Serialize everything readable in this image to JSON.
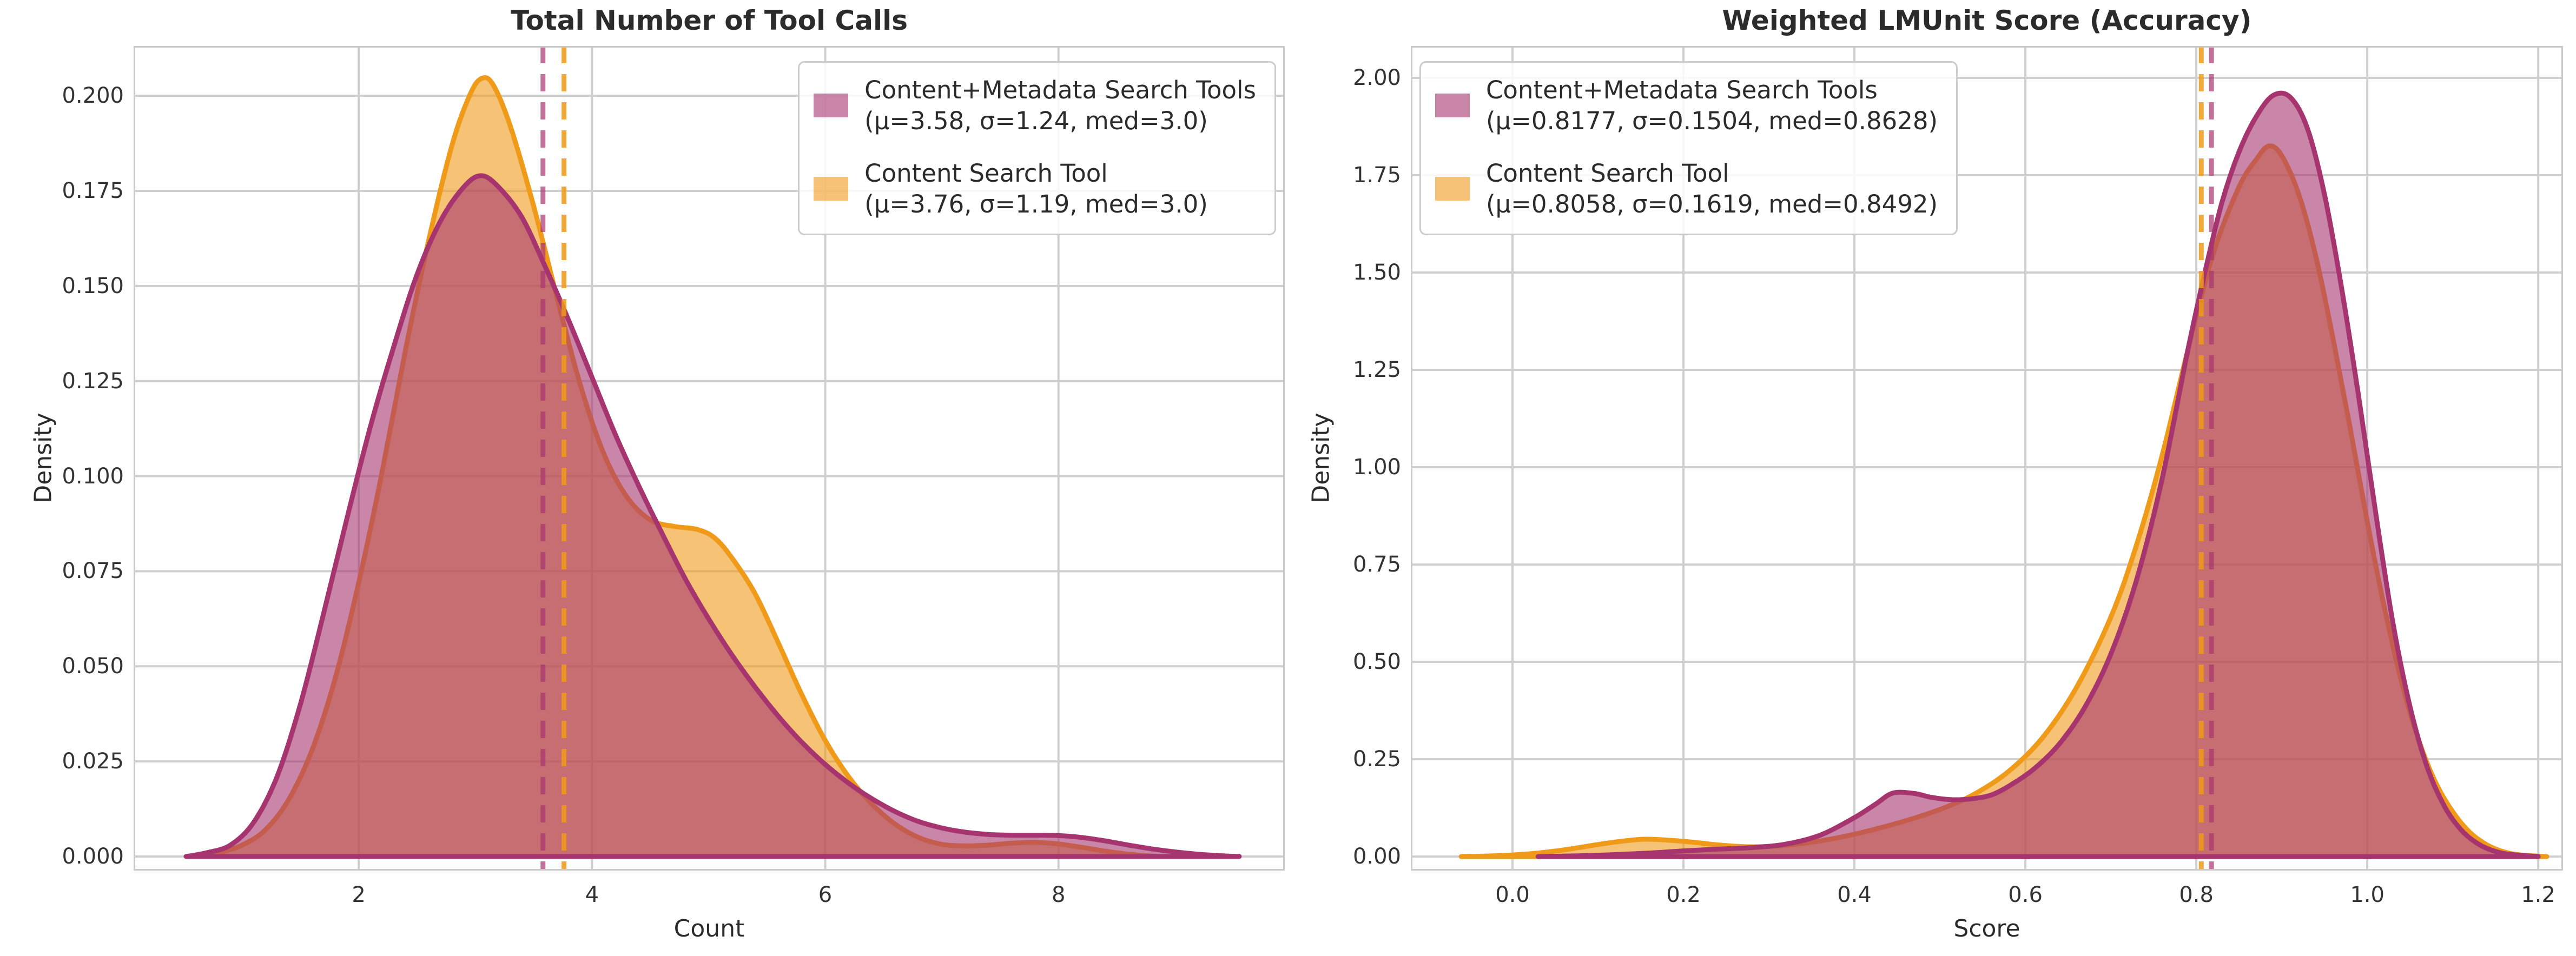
{
  "figure": {
    "background": "#ffffff",
    "text_color": "#2b2b2b",
    "tick_color": "#333333",
    "grid_color": "#cfcfcf",
    "spine_color": "#c9c9c9"
  },
  "chart_data": [
    {
      "type": "area",
      "subtype": "kde",
      "title": "Total Number of Tool Calls",
      "xlabel": "Count",
      "ylabel": "Density",
      "xlim": [
        0.07,
        9.94
      ],
      "ylim": [
        -0.0037,
        0.2131
      ],
      "grid": true,
      "xticks": {
        "values": [
          2,
          4,
          6,
          8
        ],
        "labels": [
          "2",
          "4",
          "6",
          "8"
        ]
      },
      "yticks": {
        "values": [
          0.0,
          0.025,
          0.05,
          0.075,
          0.1,
          0.125,
          0.15,
          0.175,
          0.2
        ],
        "labels": [
          "0.000",
          "0.025",
          "0.050",
          "0.075",
          "0.100",
          "0.125",
          "0.150",
          "0.175",
          "0.200"
        ]
      },
      "legend_position": "top-right",
      "legend_entries": [
        {
          "lines": [
            "Content+Metadata Search Tools",
            "(μ=3.58, σ=1.24, med=3.0)"
          ],
          "swatch_color": "rgba(166,53,111,0.6)"
        },
        {
          "lines": [
            "Content Search Tool",
            "(μ=3.76, σ=1.19, med=3.0)"
          ],
          "swatch_color": "rgba(240,154,25,0.6)"
        }
      ],
      "series": [
        {
          "key": "content-search-tool",
          "name": "Content Search Tool",
          "stats": {
            "mean": 3.76,
            "sigma": 1.19,
            "median": 3.0
          },
          "line_color": "#F09A19",
          "fill_color": "rgba(240,154,25,0.6)",
          "mean_line": 3.76,
          "mean_dash_color": "rgba(240,154,25,0.85)",
          "points": [
            [
              0.6,
              0
            ],
            [
              0.8,
              0.001
            ],
            [
              1.0,
              0.003
            ],
            [
              1.2,
              0.007
            ],
            [
              1.4,
              0.015
            ],
            [
              1.6,
              0.028
            ],
            [
              1.8,
              0.047
            ],
            [
              2.0,
              0.072
            ],
            [
              2.2,
              0.101
            ],
            [
              2.4,
              0.133
            ],
            [
              2.6,
              0.162
            ],
            [
              2.8,
              0.187
            ],
            [
              2.95,
              0.2
            ],
            [
              3.05,
              0.2045
            ],
            [
              3.15,
              0.203
            ],
            [
              3.3,
              0.192
            ],
            [
              3.5,
              0.171
            ],
            [
              3.7,
              0.147
            ],
            [
              3.9,
              0.124
            ],
            [
              4.1,
              0.106
            ],
            [
              4.3,
              0.0945
            ],
            [
              4.5,
              0.0885
            ],
            [
              4.7,
              0.0868
            ],
            [
              4.9,
              0.086
            ],
            [
              5.05,
              0.0838
            ],
            [
              5.2,
              0.0785
            ],
            [
              5.4,
              0.069
            ],
            [
              5.6,
              0.056
            ],
            [
              5.8,
              0.0425
            ],
            [
              6.0,
              0.0305
            ],
            [
              6.2,
              0.021
            ],
            [
              6.4,
              0.0138
            ],
            [
              6.6,
              0.0085
            ],
            [
              6.8,
              0.005
            ],
            [
              7.0,
              0.0032
            ],
            [
              7.2,
              0.0028
            ],
            [
              7.4,
              0.003
            ],
            [
              7.6,
              0.0035
            ],
            [
              7.8,
              0.0037
            ],
            [
              8.0,
              0.0033
            ],
            [
              8.2,
              0.0024
            ],
            [
              8.4,
              0.0014
            ],
            [
              8.6,
              0.0006
            ],
            [
              8.85,
              0
            ]
          ]
        },
        {
          "key": "content-metadata-search-tools",
          "name": "Content+Metadata Search Tools",
          "stats": {
            "mean": 3.58,
            "sigma": 1.24,
            "median": 3.0
          },
          "line_color": "#A6356F",
          "fill_color": "rgba(166,53,111,0.6)",
          "mean_line": 3.58,
          "mean_dash_color": "rgba(166,53,111,0.7)",
          "points": [
            [
              0.52,
              0
            ],
            [
              0.7,
              0.001
            ],
            [
              0.9,
              0.003
            ],
            [
              1.1,
              0.009
            ],
            [
              1.3,
              0.021
            ],
            [
              1.5,
              0.04
            ],
            [
              1.7,
              0.064
            ],
            [
              1.9,
              0.089
            ],
            [
              2.1,
              0.113
            ],
            [
              2.3,
              0.134
            ],
            [
              2.5,
              0.153
            ],
            [
              2.7,
              0.167
            ],
            [
              2.9,
              0.176
            ],
            [
              3.05,
              0.179
            ],
            [
              3.2,
              0.176
            ],
            [
              3.4,
              0.168
            ],
            [
              3.6,
              0.155
            ],
            [
              3.8,
              0.141
            ],
            [
              4.0,
              0.126
            ],
            [
              4.2,
              0.111
            ],
            [
              4.4,
              0.0975
            ],
            [
              4.6,
              0.085
            ],
            [
              4.8,
              0.073
            ],
            [
              5.0,
              0.0625
            ],
            [
              5.2,
              0.053
            ],
            [
              5.4,
              0.0445
            ],
            [
              5.6,
              0.0368
            ],
            [
              5.8,
              0.03
            ],
            [
              6.0,
              0.0242
            ],
            [
              6.2,
              0.0193
            ],
            [
              6.4,
              0.0152
            ],
            [
              6.6,
              0.0118
            ],
            [
              6.8,
              0.0092
            ],
            [
              7.0,
              0.0075
            ],
            [
              7.2,
              0.0064
            ],
            [
              7.4,
              0.0058
            ],
            [
              7.6,
              0.0056
            ],
            [
              7.8,
              0.0056
            ],
            [
              8.0,
              0.0055
            ],
            [
              8.2,
              0.005
            ],
            [
              8.4,
              0.0041
            ],
            [
              8.6,
              0.003
            ],
            [
              8.8,
              0.002
            ],
            [
              9.0,
              0.0012
            ],
            [
              9.2,
              0.0006
            ],
            [
              9.4,
              0.0002
            ],
            [
              9.55,
              0
            ]
          ]
        }
      ]
    },
    {
      "type": "area",
      "subtype": "kde",
      "title": "Weighted LMUnit Score (Accuracy)",
      "xlabel": "Score",
      "ylabel": "Density",
      "xlim": [
        -0.119,
        1.229
      ],
      "ylim": [
        -0.036,
        2.082
      ],
      "grid": true,
      "xticks": {
        "values": [
          0.0,
          0.2,
          0.4,
          0.6,
          0.8,
          1.0,
          1.2
        ],
        "labels": [
          "0.0",
          "0.2",
          "0.4",
          "0.6",
          "0.8",
          "1.0",
          "1.2"
        ]
      },
      "yticks": {
        "values": [
          0.0,
          0.25,
          0.5,
          0.75,
          1.0,
          1.25,
          1.5,
          1.75,
          2.0
        ],
        "labels": [
          "0.00",
          "0.25",
          "0.50",
          "0.75",
          "1.00",
          "1.25",
          "1.50",
          "1.75",
          "2.00"
        ]
      },
      "legend_position": "top-left",
      "legend_entries": [
        {
          "lines": [
            "Content+Metadata Search Tools",
            "(μ=0.8177, σ=0.1504, med=0.8628)"
          ],
          "swatch_color": "rgba(166,53,111,0.6)"
        },
        {
          "lines": [
            "Content Search Tool",
            "(μ=0.8058, σ=0.1619, med=0.8492)"
          ],
          "swatch_color": "rgba(240,154,25,0.6)"
        }
      ],
      "series": [
        {
          "key": "content-search-tool",
          "name": "Content Search Tool",
          "stats": {
            "mean": 0.8058,
            "sigma": 0.1619,
            "median": 0.8492
          },
          "line_color": "#F09A19",
          "fill_color": "rgba(240,154,25,0.6)",
          "mean_line": 0.8058,
          "mean_dash_color": "rgba(240,154,25,0.85)",
          "points": [
            [
              -0.06,
              0
            ],
            [
              -0.02,
              0.002
            ],
            [
              0.02,
              0.007
            ],
            [
              0.06,
              0.017
            ],
            [
              0.1,
              0.031
            ],
            [
              0.13,
              0.04
            ],
            [
              0.155,
              0.0445
            ],
            [
              0.18,
              0.0425
            ],
            [
              0.21,
              0.037
            ],
            [
              0.24,
              0.03
            ],
            [
              0.27,
              0.0255
            ],
            [
              0.3,
              0.026
            ],
            [
              0.34,
              0.034
            ],
            [
              0.38,
              0.048
            ],
            [
              0.42,
              0.068
            ],
            [
              0.46,
              0.092
            ],
            [
              0.5,
              0.121
            ],
            [
              0.54,
              0.16
            ],
            [
              0.58,
              0.218
            ],
            [
              0.62,
              0.305
            ],
            [
              0.66,
              0.435
            ],
            [
              0.7,
              0.615
            ],
            [
              0.73,
              0.8
            ],
            [
              0.76,
              1.03
            ],
            [
              0.79,
              1.3
            ],
            [
              0.82,
              1.55
            ],
            [
              0.85,
              1.72
            ],
            [
              0.87,
              1.79
            ],
            [
              0.885,
              1.825
            ],
            [
              0.9,
              1.8
            ],
            [
              0.92,
              1.7
            ],
            [
              0.94,
              1.54
            ],
            [
              0.96,
              1.33
            ],
            [
              0.98,
              1.1
            ],
            [
              1.0,
              0.86
            ],
            [
              1.02,
              0.64
            ],
            [
              1.04,
              0.45
            ],
            [
              1.06,
              0.3
            ],
            [
              1.08,
              0.19
            ],
            [
              1.1,
              0.115
            ],
            [
              1.12,
              0.062
            ],
            [
              1.14,
              0.03
            ],
            [
              1.16,
              0.012
            ],
            [
              1.18,
              0.004
            ],
            [
              1.21,
              0
            ]
          ]
        },
        {
          "key": "content-metadata-search-tools",
          "name": "Content+Metadata Search Tools",
          "stats": {
            "mean": 0.8177,
            "sigma": 0.1504,
            "median": 0.8628
          },
          "line_color": "#A6356F",
          "fill_color": "rgba(166,53,111,0.6)",
          "mean_line": 0.8177,
          "mean_dash_color": "rgba(166,53,111,0.7)",
          "points": [
            [
              0.03,
              0
            ],
            [
              0.08,
              0.002
            ],
            [
              0.12,
              0.005
            ],
            [
              0.16,
              0.009
            ],
            [
              0.2,
              0.0145
            ],
            [
              0.24,
              0.019
            ],
            [
              0.28,
              0.023
            ],
            [
              0.32,
              0.032
            ],
            [
              0.36,
              0.055
            ],
            [
              0.4,
              0.1
            ],
            [
              0.425,
              0.135
            ],
            [
              0.445,
              0.163
            ],
            [
              0.47,
              0.162
            ],
            [
              0.49,
              0.152
            ],
            [
              0.515,
              0.146
            ],
            [
              0.54,
              0.149
            ],
            [
              0.56,
              0.158
            ],
            [
              0.58,
              0.18
            ],
            [
              0.61,
              0.225
            ],
            [
              0.64,
              0.29
            ],
            [
              0.67,
              0.385
            ],
            [
              0.7,
              0.52
            ],
            [
              0.73,
              0.71
            ],
            [
              0.76,
              0.97
            ],
            [
              0.79,
              1.3
            ],
            [
              0.81,
              1.5
            ],
            [
              0.83,
              1.68
            ],
            [
              0.85,
              1.81
            ],
            [
              0.87,
              1.9
            ],
            [
              0.89,
              1.955
            ],
            [
              0.91,
              1.95
            ],
            [
              0.93,
              1.87
            ],
            [
              0.95,
              1.7
            ],
            [
              0.97,
              1.46
            ],
            [
              0.99,
              1.18
            ],
            [
              1.01,
              0.88
            ],
            [
              1.03,
              0.6
            ],
            [
              1.05,
              0.385
            ],
            [
              1.07,
              0.23
            ],
            [
              1.09,
              0.13
            ],
            [
              1.11,
              0.068
            ],
            [
              1.13,
              0.032
            ],
            [
              1.15,
              0.013
            ],
            [
              1.17,
              0.005
            ],
            [
              1.2,
              0
            ]
          ]
        }
      ]
    }
  ]
}
